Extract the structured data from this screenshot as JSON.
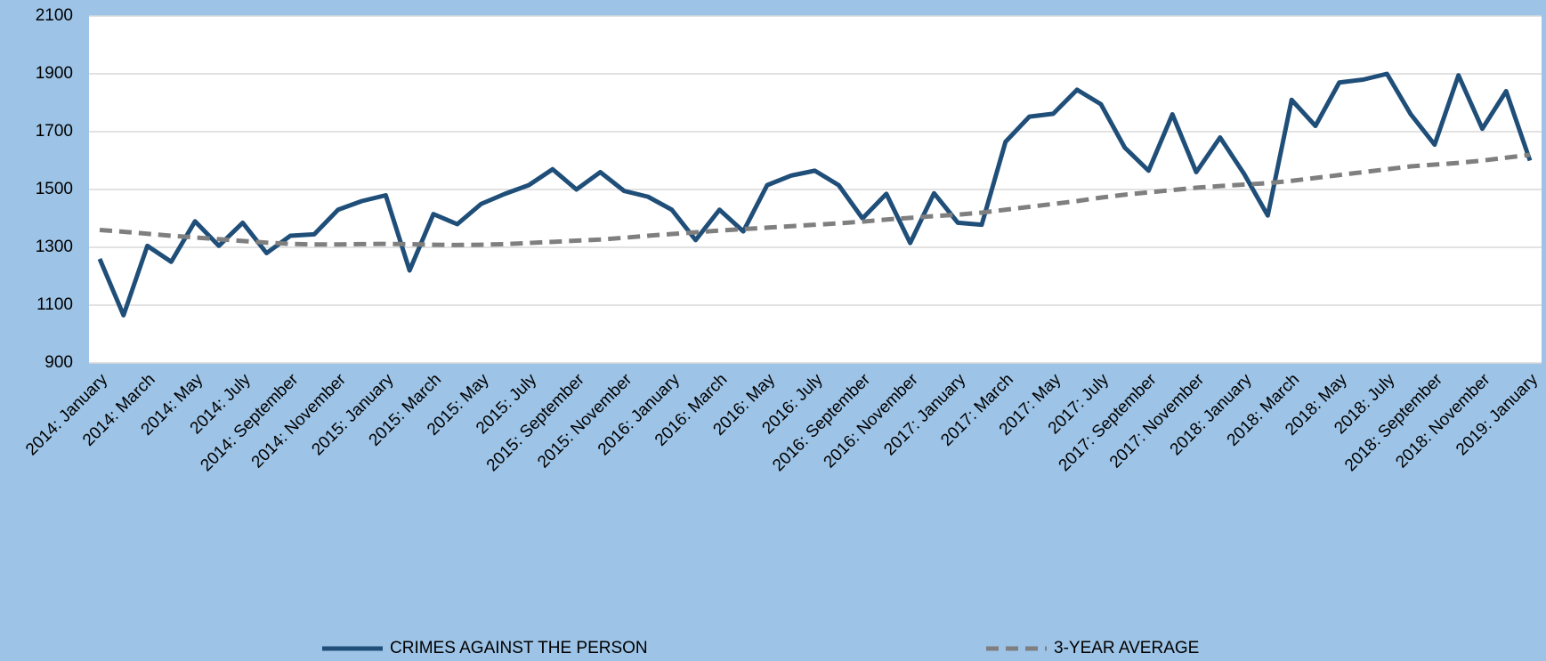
{
  "chart_data": {
    "type": "line",
    "categories": [
      "2014: January",
      null,
      "2014: March",
      null,
      "2014: May",
      null,
      "2014: July",
      null,
      "2014: September",
      null,
      "2014: November",
      null,
      "2015: January",
      null,
      "2015: March",
      null,
      "2015: May",
      null,
      "2015: July",
      null,
      "2015: September",
      null,
      "2015: November",
      null,
      "2016: January",
      null,
      "2016: March",
      null,
      "2016: May",
      null,
      "2016: July",
      null,
      "2016: September",
      null,
      "2016: November",
      null,
      "2017: January",
      null,
      "2017: March",
      null,
      "2017: May",
      null,
      "2017: July",
      null,
      "2017: September",
      null,
      "2017: November",
      null,
      "2018: January",
      null,
      "2018: March",
      null,
      "2018: May",
      null,
      "2018: July",
      null,
      "2018: September",
      null,
      "2018: November",
      null,
      "2019: January"
    ],
    "series": [
      {
        "name": "CRIMES AGAINST THE PERSON",
        "color": "#1f4e79",
        "dashed": false,
        "values": [
          1260,
          1065,
          1305,
          1250,
          1390,
          1305,
          1385,
          1280,
          1340,
          1345,
          1430,
          1460,
          1480,
          1220,
          1415,
          1380,
          1450,
          1485,
          1515,
          1570,
          1500,
          1560,
          1495,
          1475,
          1430,
          1325,
          1430,
          1355,
          1515,
          1548,
          1565,
          1515,
          1400,
          1485,
          1315,
          1487,
          1385,
          1378,
          1665,
          1752,
          1762,
          1845,
          1795,
          1645,
          1565,
          1760,
          1560,
          1680,
          1555,
          1410,
          1810,
          1720,
          1870,
          1880,
          1900,
          1760,
          1655,
          1895,
          1710,
          1840,
          1600
        ]
      },
      {
        "name": "3-YEAR AVERAGE",
        "color": "#7f7f7f",
        "dashed": true,
        "values": [
          1360,
          1354,
          1347,
          1340,
          1334,
          1328,
          1322,
          1316,
          1312,
          1310,
          1310,
          1311,
          1312,
          1311,
          1309,
          1308,
          1309,
          1311,
          1315,
          1319,
          1323,
          1327,
          1333,
          1340,
          1346,
          1352,
          1358,
          1363,
          1368,
          1373,
          1378,
          1383,
          1389,
          1396,
          1402,
          1408,
          1413,
          1420,
          1430,
          1440,
          1450,
          1460,
          1472,
          1482,
          1490,
          1498,
          1506,
          1512,
          1517,
          1522,
          1530,
          1540,
          1550,
          1560,
          1570,
          1580,
          1586,
          1592,
          1600,
          1610,
          1620
        ]
      }
    ],
    "ylim": [
      900,
      2100
    ],
    "yticks": [
      900,
      1100,
      1300,
      1500,
      1700,
      1900,
      2100
    ],
    "grid": true,
    "legend": "bottom"
  }
}
